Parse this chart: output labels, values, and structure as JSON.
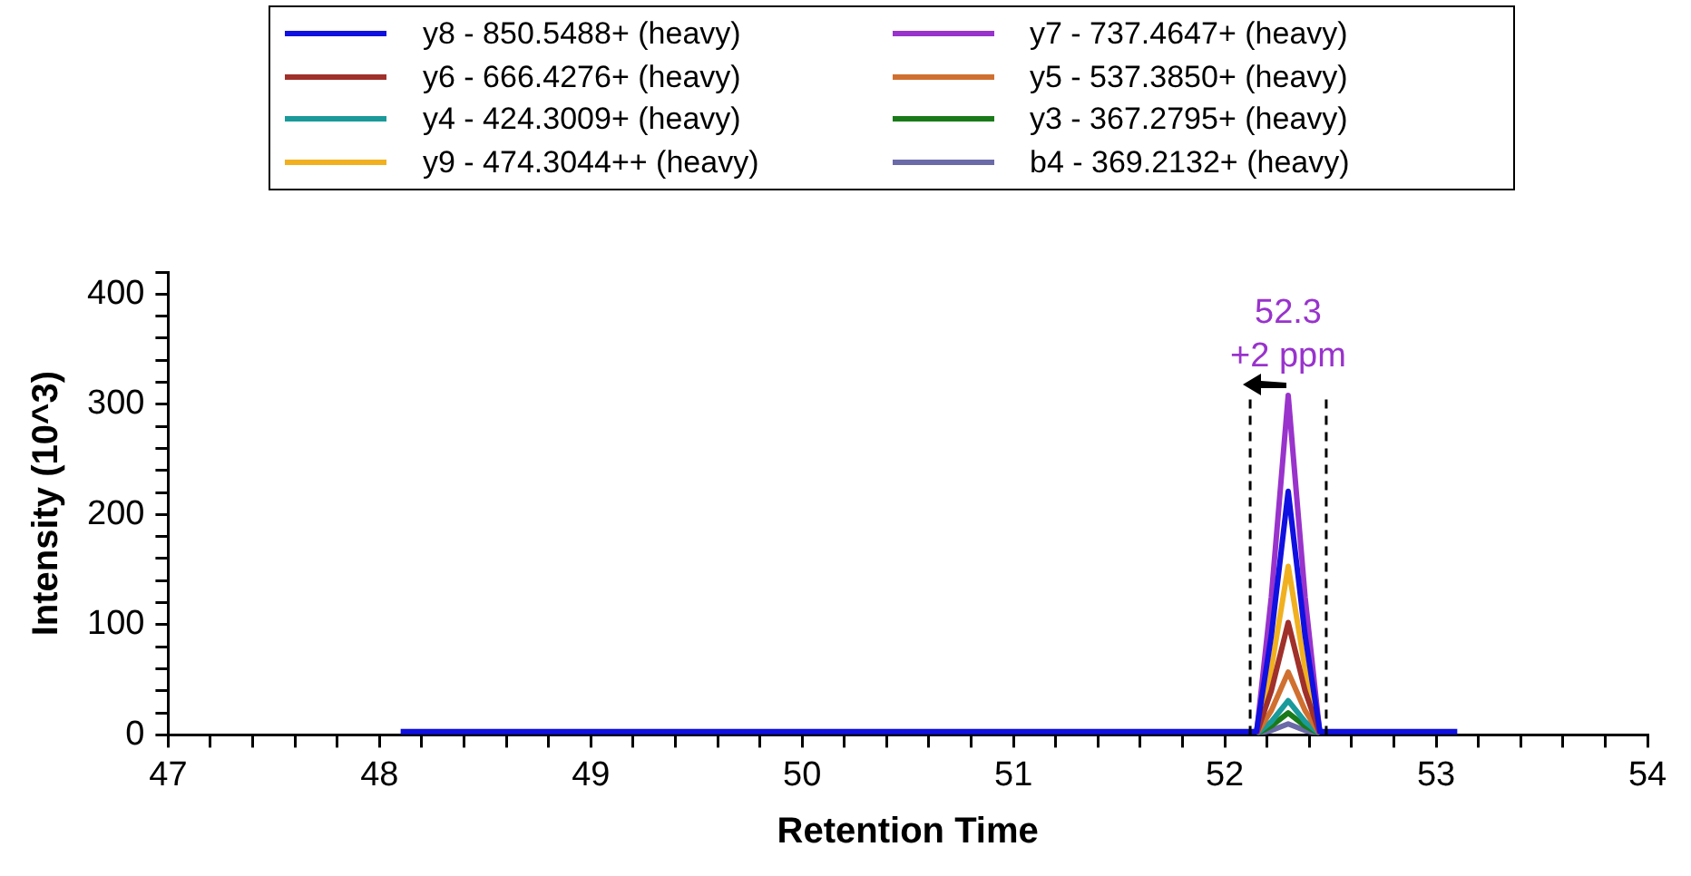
{
  "chart_data": {
    "type": "line",
    "xlabel": "Retention Time",
    "ylabel": "Intensity (10^3)",
    "x": [
      48.1,
      52.15,
      52.22,
      52.3,
      52.38,
      52.45,
      53.1
    ],
    "series": [
      {
        "name": "y8 - 850.5488+ (heavy)",
        "color": "#1010e0",
        "values": [
          3,
          3,
          90,
          221,
          90,
          3,
          3
        ]
      },
      {
        "name": "y7 - 737.4647+ (heavy)",
        "color": "#9933cc",
        "values": [
          null,
          1,
          125,
          308,
          125,
          1,
          null
        ]
      },
      {
        "name": "y6 - 666.4276+ (heavy)",
        "color": "#a0302a",
        "values": [
          null,
          1,
          40,
          102,
          40,
          1,
          null
        ]
      },
      {
        "name": "y5 - 537.3850+ (heavy)",
        "color": "#d07030",
        "values": [
          null,
          1,
          22,
          57,
          22,
          1,
          null
        ]
      },
      {
        "name": "y4 - 424.3009+ (heavy)",
        "color": "#1a9a9a",
        "values": [
          null,
          1,
          12,
          31,
          12,
          1,
          null
        ]
      },
      {
        "name": "y3 - 367.2795+ (heavy)",
        "color": "#1a7a1a",
        "values": [
          null,
          1,
          8,
          20,
          8,
          1,
          null
        ]
      },
      {
        "name": "y9 - 474.3044++ (heavy)",
        "color": "#f0b020",
        "values": [
          null,
          1,
          60,
          153,
          60,
          1,
          null
        ]
      },
      {
        "name": "b4 - 369.2132+ (heavy)",
        "color": "#6a6aa8",
        "values": [
          null,
          1,
          4,
          10,
          4,
          1,
          null
        ]
      }
    ],
    "xlim": [
      47,
      54
    ],
    "xticks": [
      47,
      {
        "value": 47.2,
        "label": null
      },
      {
        "value": 47.4,
        "label": null
      },
      {
        "value": 47.6,
        "label": null
      },
      {
        "value": 47.8,
        "label": null
      },
      48,
      {
        "value": 48.2,
        "label": null
      },
      {
        "value": 48.4,
        "label": null
      },
      {
        "value": 48.6,
        "label": null
      },
      {
        "value": 48.8,
        "label": null
      },
      49,
      {
        "value": 49.2,
        "label": null
      },
      {
        "value": 49.4,
        "label": null
      },
      {
        "value": 49.6,
        "label": null
      },
      {
        "value": 49.8,
        "label": null
      },
      50,
      {
        "value": 50.2,
        "label": null
      },
      {
        "value": 50.4,
        "label": null
      },
      {
        "value": 50.6,
        "label": null
      },
      {
        "value": 50.8,
        "label": null
      },
      51,
      {
        "value": 51.2,
        "label": null
      },
      {
        "value": 51.4,
        "label": null
      },
      {
        "value": 51.6,
        "label": null
      },
      {
        "value": 51.8,
        "label": null
      },
      52,
      {
        "value": 52.2,
        "label": null
      },
      {
        "value": 52.4,
        "label": null
      },
      {
        "value": 52.6,
        "label": null
      },
      {
        "value": 52.8,
        "label": null
      },
      53,
      {
        "value": 53.2,
        "label": null
      },
      {
        "value": 53.4,
        "label": null
      },
      {
        "value": 53.6,
        "label": null
      },
      {
        "value": 53.8,
        "label": null
      },
      54
    ],
    "ylim": [
      0,
      420
    ],
    "yticks": [
      0,
      {
        "value": 20,
        "label": null
      },
      {
        "value": 40,
        "label": null
      },
      {
        "value": 60,
        "label": null
      },
      {
        "value": 80,
        "label": null
      },
      100,
      {
        "value": 120,
        "label": null
      },
      {
        "value": 140,
        "label": null
      },
      {
        "value": 160,
        "label": null
      },
      {
        "value": 180,
        "label": null
      },
      200,
      {
        "value": 220,
        "label": null
      },
      {
        "value": 240,
        "label": null
      },
      {
        "value": 260,
        "label": null
      },
      {
        "value": 280,
        "label": null
      },
      300,
      {
        "value": 320,
        "label": null
      },
      {
        "value": 340,
        "label": null
      },
      {
        "value": 360,
        "label": null
      },
      {
        "value": 380,
        "label": null
      },
      400,
      {
        "value": 420,
        "label": null
      }
    ],
    "ref_lines": [
      {
        "axis": "x",
        "value": 52.12,
        "color": "#000000",
        "line_style": "dashed"
      },
      {
        "axis": "x",
        "value": 52.48,
        "color": "#000000",
        "line_style": "dashed"
      }
    ],
    "annotations": [
      {
        "text": "52.3",
        "x": 52.3,
        "y": 308
      },
      {
        "text": "+2 ppm",
        "x": 52.3,
        "y": 308
      }
    ],
    "legend": "top",
    "grid": false,
    "marker": "none",
    "line_style": "solid"
  }
}
